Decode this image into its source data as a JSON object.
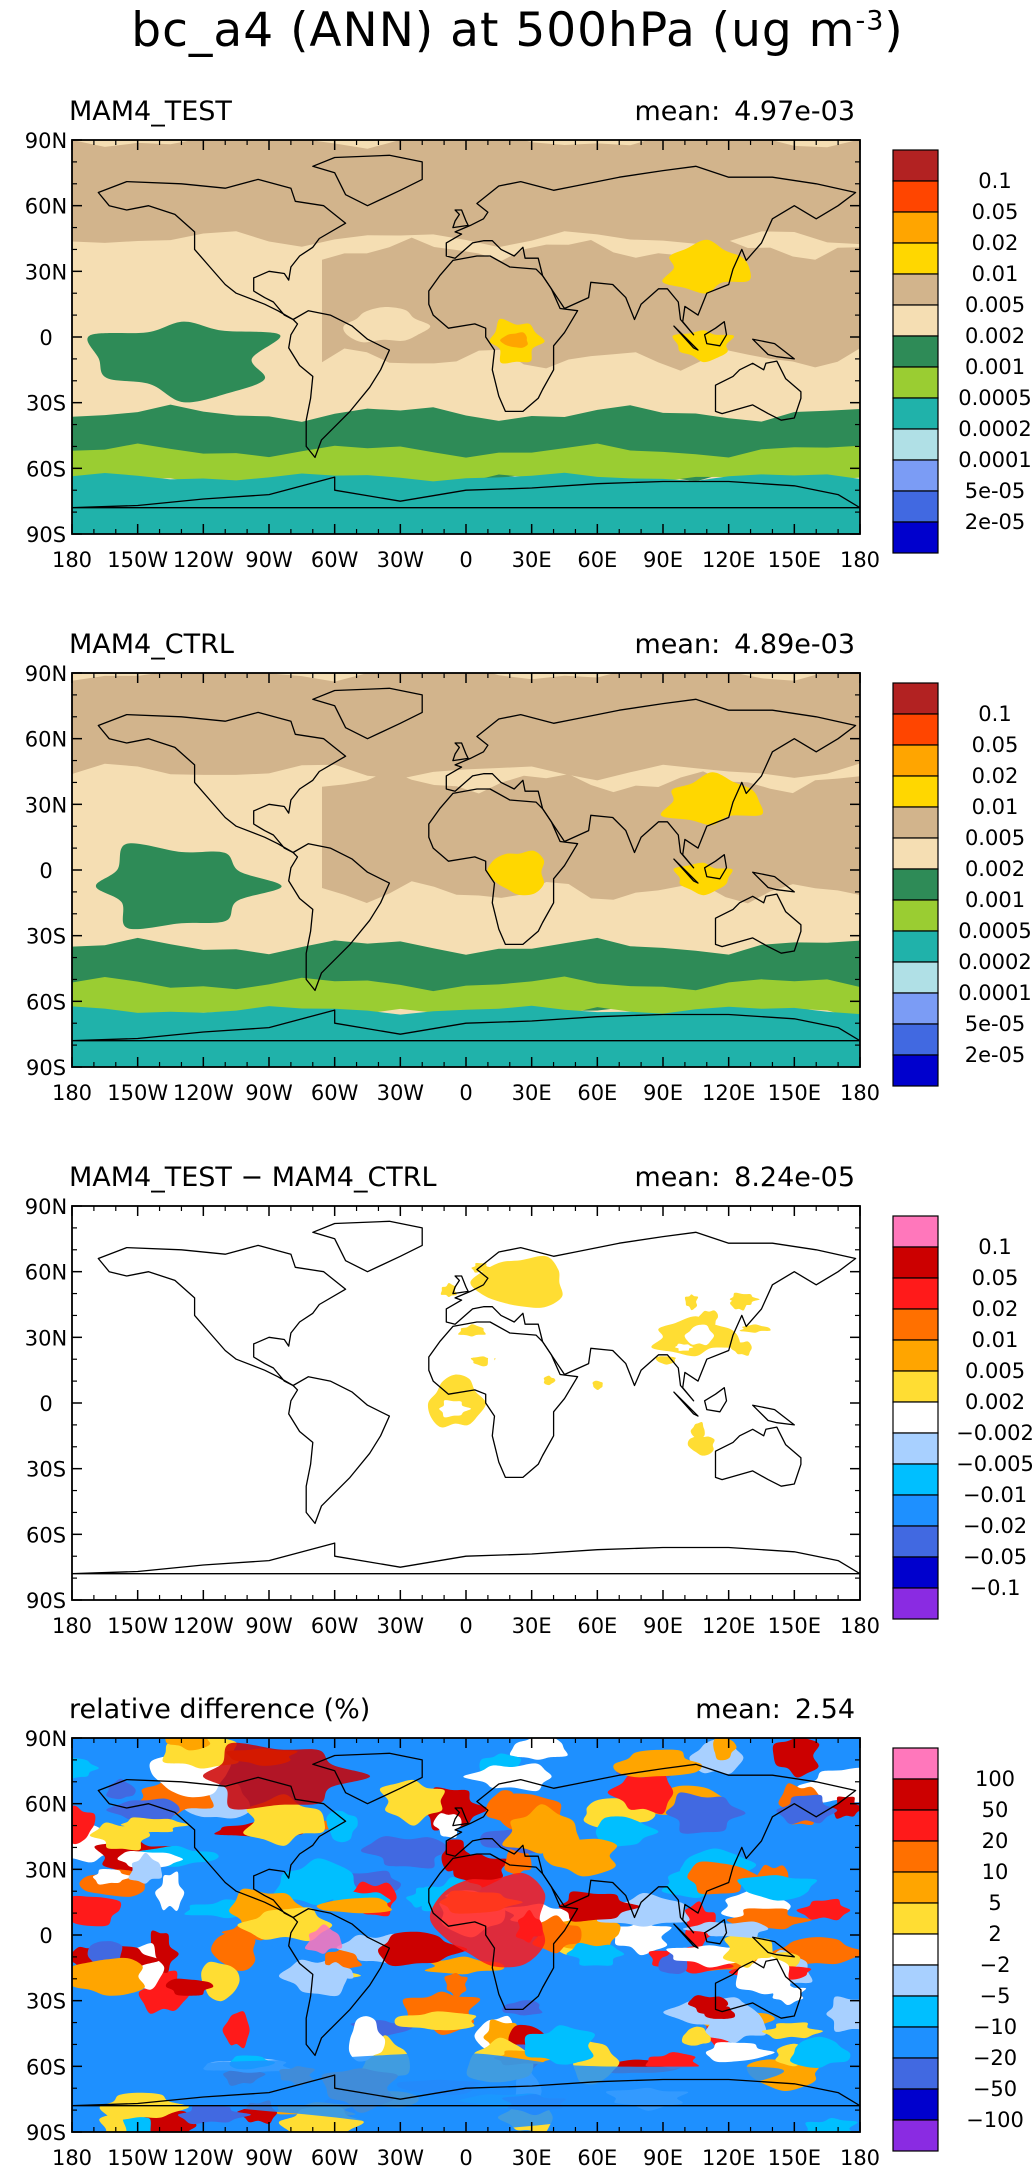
{
  "figure": {
    "title": "bc_a4 (ANN) at 500hPa (ug m",
    "title_exponent": "-3",
    "title_close": ")"
  },
  "axes": {
    "lat_ticks": [
      "90N",
      "60N",
      "30N",
      "0",
      "30S",
      "60S",
      "90S"
    ],
    "lon_ticks": [
      "180",
      "150W",
      "120W",
      "90W",
      "60W",
      "30W",
      "0",
      "30E",
      "60E",
      "90E",
      "120E",
      "150E",
      "180"
    ]
  },
  "chart_data": [
    {
      "type": "heatmap",
      "id": "test",
      "title": "MAM4_TEST",
      "mean_label": "mean:",
      "mean_value": "4.97e-03",
      "xlim": [
        -180,
        180
      ],
      "ylim": [
        -90,
        90
      ],
      "legend": {
        "labels": [
          "0.1",
          "0.05",
          "0.02",
          "0.01",
          "0.005",
          "0.002",
          "0.001",
          "0.0005",
          "0.0002",
          "0.0001",
          "5e-05",
          "2e-05"
        ],
        "colors": [
          "#b22222",
          "#ff4500",
          "#ffa500",
          "#ffd700",
          "#d2b48c",
          "#f5deb3",
          "#2e8b57",
          "#9acd32",
          "#20b2aa",
          "#b0e0e6",
          "#7b9cf5",
          "#4169e1",
          "#0000cd"
        ]
      },
      "regions": [
        {
          "name": "southern-ocean-band",
          "lat": [
            -90,
            -50
          ],
          "lon": [
            -180,
            180
          ],
          "value": 0.0005
        },
        {
          "name": "southern-midlat-band",
          "lat": [
            -62,
            -38
          ],
          "lon": [
            -180,
            180
          ],
          "value": 0.001
        },
        {
          "name": "tropical-east-pacific",
          "lat": [
            -32,
            12
          ],
          "lon": [
            -180,
            -78
          ],
          "value": 0.001
        },
        {
          "name": "tropical-atlantic",
          "lat": [
            -5,
            15
          ],
          "lon": [
            -60,
            -15
          ],
          "value": 0.002
        },
        {
          "name": "central-africa-max",
          "lat": [
            -14,
            10
          ],
          "lon": [
            8,
            38
          ],
          "value": 0.01
        },
        {
          "name": "central-africa-peak",
          "lat": [
            -6,
            3
          ],
          "lon": [
            15,
            30
          ],
          "value": 0.02
        },
        {
          "name": "east-asia",
          "lat": [
            18,
            45
          ],
          "lon": [
            85,
            135
          ],
          "value": 0.01
        },
        {
          "name": "maritime-continent",
          "lat": [
            -12,
            5
          ],
          "lon": [
            92,
            125
          ],
          "value": 0.01
        }
      ]
    },
    {
      "type": "heatmap",
      "id": "ctrl",
      "title": "MAM4_CTRL",
      "mean_label": "mean:",
      "mean_value": "4.89e-03",
      "xlim": [
        -180,
        180
      ],
      "ylim": [
        -90,
        90
      ],
      "legend": {
        "labels": [
          "0.1",
          "0.05",
          "0.02",
          "0.01",
          "0.005",
          "0.002",
          "0.001",
          "0.0005",
          "0.0002",
          "0.0001",
          "5e-05",
          "2e-05"
        ],
        "colors": [
          "#b22222",
          "#ff4500",
          "#ffa500",
          "#ffd700",
          "#d2b48c",
          "#f5deb3",
          "#2e8b57",
          "#9acd32",
          "#20b2aa",
          "#b0e0e6",
          "#7b9cf5",
          "#4169e1",
          "#0000cd"
        ]
      },
      "regions": [
        {
          "name": "southern-ocean-band",
          "lat": [
            -90,
            -55
          ],
          "lon": [
            -180,
            180
          ],
          "value": 0.0005
        },
        {
          "name": "southern-midlat-band",
          "lat": [
            -65,
            -35
          ],
          "lon": [
            -180,
            180
          ],
          "value": 0.001
        },
        {
          "name": "tropical-east-pacific",
          "lat": [
            -30,
            15
          ],
          "lon": [
            -180,
            -80
          ],
          "value": 0.001
        },
        {
          "name": "central-africa-max",
          "lat": [
            -14,
            12
          ],
          "lon": [
            8,
            40
          ],
          "value": 0.01
        },
        {
          "name": "east-asia",
          "lat": [
            18,
            45
          ],
          "lon": [
            85,
            140
          ],
          "value": 0.01
        },
        {
          "name": "maritime-continent",
          "lat": [
            -12,
            5
          ],
          "lon": [
            92,
            125
          ],
          "value": 0.01
        }
      ]
    },
    {
      "type": "heatmap",
      "id": "diff",
      "title": "MAM4_TEST − MAM4_CTRL",
      "mean_label": "mean:",
      "mean_value": "8.24e-05",
      "xlim": [
        -180,
        180
      ],
      "ylim": [
        -90,
        90
      ],
      "legend": {
        "labels": [
          "0.1",
          "0.05",
          "0.02",
          "0.01",
          "0.005",
          "0.002",
          "−0.002",
          "−0.005",
          "−0.01",
          "−0.02",
          "−0.05",
          "−0.1"
        ],
        "colors": [
          "#ff77bb",
          "#cc0000",
          "#ff1a1a",
          "#ff7000",
          "#ffa500",
          "#ffdd33",
          "#ffffff",
          "#a8d0ff",
          "#00bfff",
          "#1e90ff",
          "#4169e1",
          "#0000cd",
          "#8a2be2"
        ]
      },
      "regions": [
        {
          "name": "africa-positive",
          "lat": [
            -15,
            15
          ],
          "lon": [
            -20,
            10
          ],
          "value": 0.002
        },
        {
          "name": "congo-negative",
          "lat": [
            -10,
            10
          ],
          "lon": [
            10,
            35
          ],
          "value": -0.002
        },
        {
          "name": "europe-positive",
          "lat": [
            40,
            70
          ],
          "lon": [
            0,
            50
          ],
          "value": 0.002
        },
        {
          "name": "asia-positive",
          "lat": [
            20,
            40
          ],
          "lon": [
            80,
            130
          ],
          "value": 0.002
        }
      ]
    },
    {
      "type": "heatmap",
      "id": "rel",
      "title": "relative difference (%)",
      "mean_label": "mean:",
      "mean_value": "2.54",
      "xlim": [
        -180,
        180
      ],
      "ylim": [
        -90,
        90
      ],
      "legend": {
        "labels": [
          "100",
          "50",
          "20",
          "10",
          "5",
          "2",
          "−2",
          "−5",
          "−10",
          "−20",
          "−50",
          "−100"
        ],
        "colors": [
          "#ff77bb",
          "#cc0000",
          "#ff1a1a",
          "#ff7000",
          "#ffa500",
          "#ffdd33",
          "#ffffff",
          "#a8d0ff",
          "#00bfff",
          "#1e90ff",
          "#4169e1",
          "#0000cd",
          "#8a2be2"
        ]
      },
      "regions": [
        {
          "name": "north-pole-positive",
          "lat": [
            55,
            90
          ],
          "lon": [
            -130,
            -40
          ],
          "value": 50
        },
        {
          "name": "africa-positive",
          "lat": [
            -20,
            35
          ],
          "lon": [
            -20,
            45
          ],
          "value": 20
        },
        {
          "name": "south-america-peak",
          "lat": [
            -10,
            5
          ],
          "lon": [
            -75,
            -55
          ],
          "value": 100
        },
        {
          "name": "southern-ocean-negative",
          "lat": [
            -90,
            -50
          ],
          "lon": [
            -180,
            180
          ],
          "value": -20
        }
      ]
    }
  ]
}
